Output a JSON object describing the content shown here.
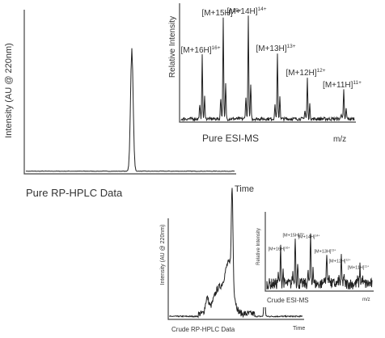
{
  "top": {
    "hplc": {
      "y_label": "Intensity (AU @ 220nm)",
      "caption": "Pure RP-HPLC Data",
      "x_label": "Time"
    },
    "ms": {
      "y_label": "Relative Intensity",
      "caption": "Pure ESI-MS",
      "x_label": "m/z",
      "peaks": [
        {
          "ion": "[M+16H]",
          "charge": "16+"
        },
        {
          "ion": "[M+15H]",
          "charge": "15+"
        },
        {
          "ion": "[M+14H]",
          "charge": "14+"
        },
        {
          "ion": "[M+13H]",
          "charge": "13+"
        },
        {
          "ion": "[M+12H]",
          "charge": "12+"
        },
        {
          "ion": "[M+11H]",
          "charge": "11+"
        }
      ]
    }
  },
  "bottom": {
    "hplc": {
      "y_label": "Intensity (AU @ 220nm)",
      "caption": "Crude RP-HPLC Data",
      "x_label": "Time"
    },
    "ms": {
      "y_label": "Relative Intensity",
      "caption": "Crude ESI-MS",
      "x_label": "m/z",
      "peaks": [
        {
          "ion": "[M+16H]",
          "charge": "16+"
        },
        {
          "ion": "[M+15H]",
          "charge": "15+"
        },
        {
          "ion": "[M+14H]",
          "charge": "14+"
        },
        {
          "ion": "[M+13H]",
          "charge": "13+"
        },
        {
          "ion": "[M+12H]",
          "charge": "12+"
        },
        {
          "ion": "[M+11H]",
          "charge": "11+"
        }
      ]
    }
  }
}
